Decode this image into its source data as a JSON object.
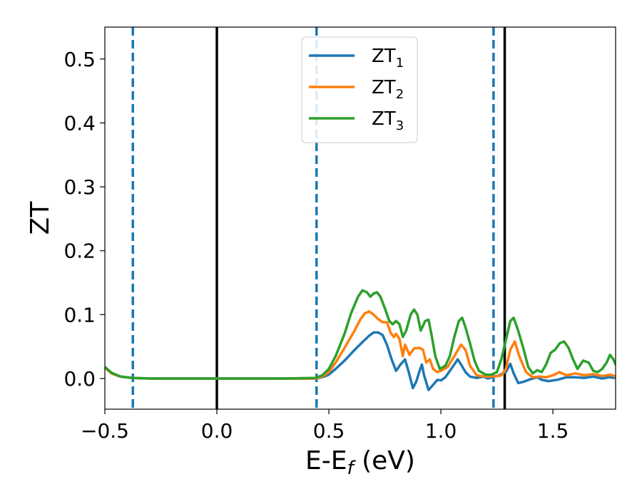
{
  "chart_data": {
    "type": "line",
    "xlabel": {
      "main": "E-E",
      "sub": "f",
      "rest": " (eV)"
    },
    "ylabel": "ZT",
    "xlim": [
      -0.5,
      1.78
    ],
    "ylim": [
      -0.048,
      0.55
    ],
    "xticks": [
      -0.5,
      0.0,
      0.5,
      1.0,
      1.5
    ],
    "xtick_labels": [
      "−0.5",
      "0.0",
      "0.5",
      "1.0",
      "1.5"
    ],
    "yticks": [
      0.0,
      0.1,
      0.2,
      0.3,
      0.4,
      0.5
    ],
    "ytick_labels": [
      "0.0",
      "0.1",
      "0.2",
      "0.3",
      "0.4",
      "0.5"
    ],
    "grid": false,
    "legend_position": "top-center",
    "vertical_lines": [
      {
        "x": -0.375,
        "style": "dashed",
        "color": "#1f77b4"
      },
      {
        "x": 0.0,
        "style": "solid",
        "color": "#000000"
      },
      {
        "x": 0.445,
        "style": "dashed",
        "color": "#1f77b4"
      },
      {
        "x": 1.235,
        "style": "dashed",
        "color": "#1f77b4"
      },
      {
        "x": 1.285,
        "style": "solid",
        "color": "#000000"
      }
    ],
    "series": [
      {
        "name": "ZT",
        "sub": "1",
        "color": "#1f77b4",
        "points": [
          [
            -0.5,
            0.017
          ],
          [
            -0.47,
            0.008
          ],
          [
            -0.43,
            0.003
          ],
          [
            -0.38,
            0.001
          ],
          [
            -0.3,
            0.0
          ],
          [
            0.0,
            0.0
          ],
          [
            0.3,
            0.0
          ],
          [
            0.44,
            0.0
          ],
          [
            0.47,
            0.002
          ],
          [
            0.5,
            0.006
          ],
          [
            0.53,
            0.015
          ],
          [
            0.57,
            0.028
          ],
          [
            0.61,
            0.043
          ],
          [
            0.65,
            0.057
          ],
          [
            0.68,
            0.067
          ],
          [
            0.7,
            0.072
          ],
          [
            0.72,
            0.072
          ],
          [
            0.74,
            0.068
          ],
          [
            0.76,
            0.052
          ],
          [
            0.78,
            0.03
          ],
          [
            0.8,
            0.012
          ],
          [
            0.82,
            0.022
          ],
          [
            0.84,
            0.03
          ],
          [
            0.855,
            0.012
          ],
          [
            0.875,
            -0.015
          ],
          [
            0.89,
            -0.005
          ],
          [
            0.905,
            0.012
          ],
          [
            0.915,
            0.022
          ],
          [
            0.925,
            0.005
          ],
          [
            0.945,
            -0.018
          ],
          [
            0.965,
            -0.01
          ],
          [
            0.985,
            -0.002
          ],
          [
            1.0,
            -0.003
          ],
          [
            1.02,
            0.002
          ],
          [
            1.04,
            0.012
          ],
          [
            1.06,
            0.022
          ],
          [
            1.075,
            0.03
          ],
          [
            1.09,
            0.022
          ],
          [
            1.11,
            0.01
          ],
          [
            1.13,
            0.003
          ],
          [
            1.16,
            0.001
          ],
          [
            1.19,
            0.003
          ],
          [
            1.21,
            0.0
          ],
          [
            1.23,
            0.002
          ],
          [
            1.26,
            0.005
          ],
          [
            1.29,
            0.01
          ],
          [
            1.31,
            0.023
          ],
          [
            1.325,
            0.008
          ],
          [
            1.345,
            -0.007
          ],
          [
            1.37,
            -0.005
          ],
          [
            1.4,
            -0.001
          ],
          [
            1.43,
            0.002
          ],
          [
            1.45,
            -0.002
          ],
          [
            1.48,
            -0.004
          ],
          [
            1.52,
            -0.002
          ],
          [
            1.56,
            0.002
          ],
          [
            1.6,
            0.002
          ],
          [
            1.64,
            0.001
          ],
          [
            1.68,
            0.003
          ],
          [
            1.72,
            0.0
          ],
          [
            1.75,
            0.002
          ],
          [
            1.78,
            0.001
          ]
        ]
      },
      {
        "name": "ZT",
        "sub": "2",
        "color": "#ff7f0e",
        "points": [
          [
            -0.5,
            0.017
          ],
          [
            -0.47,
            0.008
          ],
          [
            -0.43,
            0.003
          ],
          [
            -0.38,
            0.001
          ],
          [
            -0.3,
            0.0
          ],
          [
            0.0,
            0.0
          ],
          [
            0.3,
            0.0
          ],
          [
            0.44,
            0.0
          ],
          [
            0.47,
            0.003
          ],
          [
            0.5,
            0.01
          ],
          [
            0.53,
            0.025
          ],
          [
            0.57,
            0.048
          ],
          [
            0.61,
            0.072
          ],
          [
            0.64,
            0.092
          ],
          [
            0.66,
            0.102
          ],
          [
            0.68,
            0.105
          ],
          [
            0.7,
            0.1
          ],
          [
            0.72,
            0.093
          ],
          [
            0.74,
            0.088
          ],
          [
            0.76,
            0.088
          ],
          [
            0.775,
            0.072
          ],
          [
            0.79,
            0.065
          ],
          [
            0.8,
            0.07
          ],
          [
            0.815,
            0.062
          ],
          [
            0.83,
            0.035
          ],
          [
            0.84,
            0.053
          ],
          [
            0.86,
            0.037
          ],
          [
            0.88,
            0.047
          ],
          [
            0.905,
            0.048
          ],
          [
            0.92,
            0.045
          ],
          [
            0.935,
            0.025
          ],
          [
            0.95,
            0.03
          ],
          [
            0.965,
            0.015
          ],
          [
            0.985,
            0.01
          ],
          [
            1.0,
            0.012
          ],
          [
            1.03,
            0.018
          ],
          [
            1.06,
            0.035
          ],
          [
            1.09,
            0.053
          ],
          [
            1.11,
            0.045
          ],
          [
            1.13,
            0.02
          ],
          [
            1.16,
            0.005
          ],
          [
            1.2,
            0.003
          ],
          [
            1.24,
            0.003
          ],
          [
            1.27,
            0.005
          ],
          [
            1.29,
            0.015
          ],
          [
            1.31,
            0.045
          ],
          [
            1.33,
            0.058
          ],
          [
            1.35,
            0.035
          ],
          [
            1.38,
            0.01
          ],
          [
            1.41,
            0.002
          ],
          [
            1.44,
            0.003
          ],
          [
            1.47,
            0.002
          ],
          [
            1.5,
            0.005
          ],
          [
            1.53,
            0.01
          ],
          [
            1.56,
            0.005
          ],
          [
            1.6,
            0.008
          ],
          [
            1.64,
            0.005
          ],
          [
            1.68,
            0.007
          ],
          [
            1.72,
            0.004
          ],
          [
            1.76,
            0.006
          ],
          [
            1.78,
            0.003
          ]
        ]
      },
      {
        "name": "ZT",
        "sub": "3",
        "color": "#2ca02c",
        "points": [
          [
            -0.5,
            0.018
          ],
          [
            -0.47,
            0.009
          ],
          [
            -0.43,
            0.003
          ],
          [
            -0.38,
            0.001
          ],
          [
            -0.3,
            0.0
          ],
          [
            0.0,
            0.0
          ],
          [
            0.3,
            0.0
          ],
          [
            0.44,
            0.001
          ],
          [
            0.47,
            0.005
          ],
          [
            0.5,
            0.015
          ],
          [
            0.53,
            0.035
          ],
          [
            0.57,
            0.07
          ],
          [
            0.6,
            0.103
          ],
          [
            0.63,
            0.128
          ],
          [
            0.65,
            0.138
          ],
          [
            0.67,
            0.135
          ],
          [
            0.685,
            0.128
          ],
          [
            0.7,
            0.133
          ],
          [
            0.715,
            0.135
          ],
          [
            0.73,
            0.128
          ],
          [
            0.75,
            0.11
          ],
          [
            0.77,
            0.09
          ],
          [
            0.785,
            0.085
          ],
          [
            0.8,
            0.09
          ],
          [
            0.815,
            0.085
          ],
          [
            0.83,
            0.065
          ],
          [
            0.845,
            0.075
          ],
          [
            0.865,
            0.1
          ],
          [
            0.88,
            0.108
          ],
          [
            0.895,
            0.1
          ],
          [
            0.91,
            0.075
          ],
          [
            0.93,
            0.09
          ],
          [
            0.945,
            0.092
          ],
          [
            0.96,
            0.065
          ],
          [
            0.975,
            0.035
          ],
          [
            0.995,
            0.015
          ],
          [
            1.02,
            0.02
          ],
          [
            1.04,
            0.035
          ],
          [
            1.06,
            0.065
          ],
          [
            1.08,
            0.09
          ],
          [
            1.095,
            0.095
          ],
          [
            1.11,
            0.08
          ],
          [
            1.13,
            0.055
          ],
          [
            1.15,
            0.028
          ],
          [
            1.17,
            0.012
          ],
          [
            1.2,
            0.006
          ],
          [
            1.225,
            0.006
          ],
          [
            1.25,
            0.01
          ],
          [
            1.27,
            0.03
          ],
          [
            1.29,
            0.06
          ],
          [
            1.31,
            0.09
          ],
          [
            1.325,
            0.095
          ],
          [
            1.345,
            0.075
          ],
          [
            1.37,
            0.045
          ],
          [
            1.39,
            0.018
          ],
          [
            1.41,
            0.008
          ],
          [
            1.43,
            0.013
          ],
          [
            1.45,
            0.01
          ],
          [
            1.47,
            0.022
          ],
          [
            1.49,
            0.04
          ],
          [
            1.51,
            0.045
          ],
          [
            1.53,
            0.055
          ],
          [
            1.55,
            0.058
          ],
          [
            1.57,
            0.048
          ],
          [
            1.59,
            0.03
          ],
          [
            1.61,
            0.015
          ],
          [
            1.635,
            0.028
          ],
          [
            1.66,
            0.025
          ],
          [
            1.68,
            0.012
          ],
          [
            1.7,
            0.01
          ],
          [
            1.72,
            0.015
          ],
          [
            1.74,
            0.025
          ],
          [
            1.755,
            0.037
          ],
          [
            1.77,
            0.03
          ],
          [
            1.78,
            0.022
          ]
        ]
      }
    ]
  }
}
